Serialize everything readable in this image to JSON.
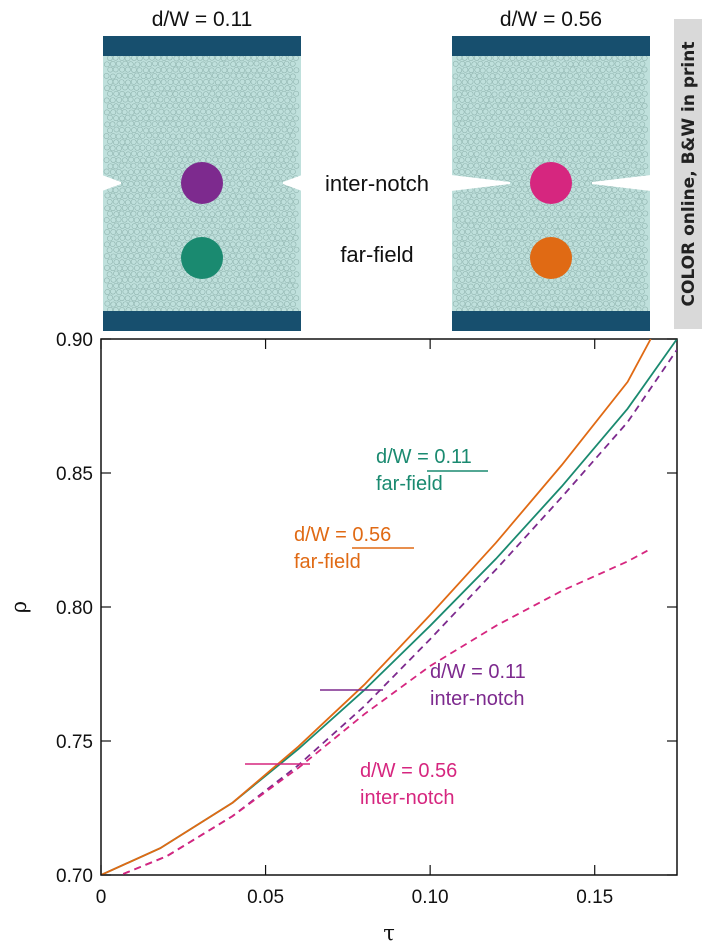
{
  "panels": [
    {
      "title": "d/W = 0.11",
      "notch_depth": 0.11
    },
    {
      "title": "d/W = 0.56",
      "notch_depth": 0.56
    }
  ],
  "region_labels": {
    "inter_notch": "inter-notch",
    "far_field": "far-field"
  },
  "side_note": "COLOR online, B&W in print",
  "colors": {
    "plate": "#bfe0dc",
    "grain_stroke": "#8fb3ae",
    "wall": "#174f6e",
    "inter_notch_011": "#7d2a8e",
    "inter_notch_056": "#d6267f",
    "far_field_011": "#1a8a70",
    "far_field_056": "#e06a14"
  },
  "chart_data": {
    "type": "line",
    "xlabel": "τ",
    "ylabel": "ρ",
    "xlim": [
      0,
      0.175
    ],
    "ylim": [
      0.7,
      0.9
    ],
    "x_ticks": [
      0,
      0.05,
      0.1,
      0.15
    ],
    "x_tick_labels": [
      "0",
      "0.05",
      "0.10",
      "0.15"
    ],
    "y_ticks": [
      0.7,
      0.75,
      0.8,
      0.85,
      0.9
    ],
    "y_tick_labels": [
      "0.70",
      "0.75",
      "0.80",
      "0.85",
      "0.90"
    ],
    "grid": false,
    "series": [
      {
        "name": "d/W = 0.11 far-field",
        "label_lines": [
          "d/W = 0.11",
          "far-field"
        ],
        "color": "#1a8a70",
        "dash": false,
        "x": [
          0,
          0.018,
          0.04,
          0.06,
          0.08,
          0.1,
          0.12,
          0.14,
          0.16,
          0.175
        ],
        "y": [
          0.7,
          0.71,
          0.727,
          0.747,
          0.769,
          0.793,
          0.818,
          0.845,
          0.874,
          0.9
        ]
      },
      {
        "name": "d/W = 0.56 far-field",
        "label_lines": [
          "d/W = 0.56",
          "far-field"
        ],
        "color": "#e06a14",
        "dash": false,
        "x": [
          0,
          0.018,
          0.04,
          0.06,
          0.08,
          0.1,
          0.12,
          0.14,
          0.16,
          0.167
        ],
        "y": [
          0.7,
          0.71,
          0.727,
          0.748,
          0.771,
          0.797,
          0.824,
          0.853,
          0.884,
          0.9
        ]
      },
      {
        "name": "d/W = 0.11 inter-notch",
        "label_lines": [
          "d/W = 0.11",
          "inter-notch"
        ],
        "color": "#7d2a8e",
        "dash": true,
        "x": [
          0,
          0.02,
          0.04,
          0.06,
          0.08,
          0.1,
          0.12,
          0.14,
          0.16,
          0.175
        ],
        "y": [
          0.697,
          0.707,
          0.722,
          0.741,
          0.763,
          0.788,
          0.814,
          0.841,
          0.869,
          0.896
        ]
      },
      {
        "name": "d/W = 0.56 inter-notch",
        "label_lines": [
          "d/W = 0.56",
          "inter-notch"
        ],
        "color": "#d6267f",
        "dash": true,
        "x": [
          0,
          0.02,
          0.04,
          0.06,
          0.08,
          0.1,
          0.12,
          0.14,
          0.16,
          0.166
        ],
        "y": [
          0.697,
          0.707,
          0.722,
          0.74,
          0.76,
          0.778,
          0.793,
          0.806,
          0.817,
          0.821
        ]
      }
    ]
  }
}
